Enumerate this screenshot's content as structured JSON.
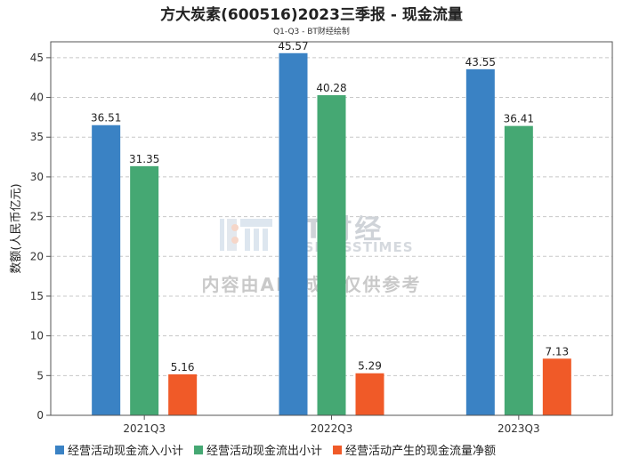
{
  "chart_data": {
    "type": "bar",
    "title": "方大炭素(600516)2023三季报 - 现金流量",
    "subtitle": "Q1-Q3 - BT财经绘制",
    "ylabel": "数额(人民币亿元)",
    "xlabel": "",
    "ylim": [
      0,
      47
    ],
    "yticks": [
      0,
      5,
      10,
      15,
      20,
      25,
      30,
      35,
      40,
      45
    ],
    "grid": true,
    "legend_position": "bottom",
    "categories": [
      "2021Q3",
      "2022Q3",
      "2023Q3"
    ],
    "series": [
      {
        "name": "经营活动现金流入小计",
        "color": "#3a82c4",
        "values": [
          36.51,
          45.57,
          43.55
        ]
      },
      {
        "name": "经营活动现金流出小计",
        "color": "#45a873",
        "values": [
          31.35,
          40.28,
          36.41
        ]
      },
      {
        "name": "经营活动产生的现金流量净额",
        "color": "#f05a28",
        "values": [
          5.16,
          5.29,
          7.13
        ]
      }
    ]
  },
  "watermark": {
    "brand_main": "BT财经",
    "brand_sub": "BUSINESSTIMES",
    "notice": "内容由AI生成，仅供参考"
  }
}
